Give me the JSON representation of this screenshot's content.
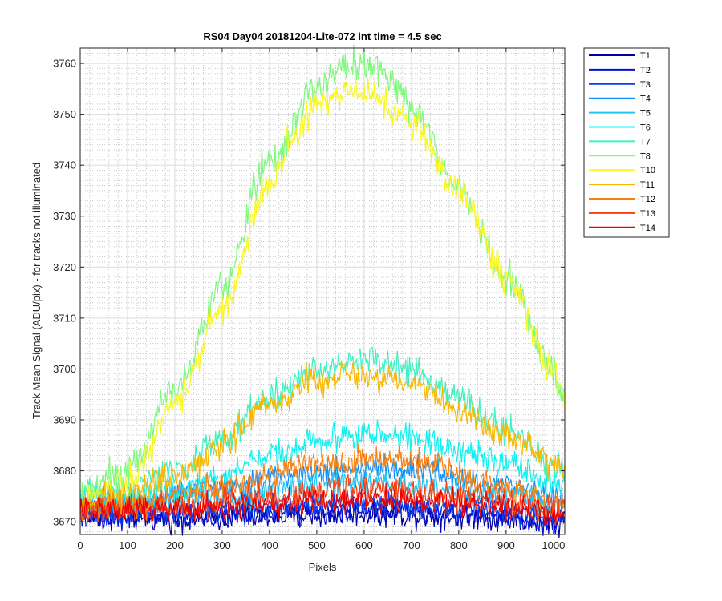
{
  "chart_data": {
    "type": "line",
    "title": "RS04 Day04 20181204-Lite-072 int time = 4.5 sec",
    "xlabel": "Pixels",
    "ylabel": "Track Mean Signal (ADU/pix) - for tracks not illuminated",
    "xlim": [
      0,
      1024
    ],
    "ylim": [
      3667.5,
      3763
    ],
    "xticks": [
      0,
      100,
      200,
      300,
      400,
      500,
      600,
      700,
      800,
      900,
      1000
    ],
    "yticks": [
      3670,
      3680,
      3690,
      3700,
      3710,
      3720,
      3730,
      3740,
      3750,
      3760
    ],
    "grid": "on",
    "minor_grid": "on",
    "legend_position": "outside-top-right",
    "series": [
      {
        "name": "T1",
        "color": "#0000a8",
        "points": [
          [
            0,
            3671
          ],
          [
            200,
            3670.5
          ],
          [
            400,
            3671
          ],
          [
            600,
            3671.5
          ],
          [
            800,
            3671
          ],
          [
            1024,
            3670
          ]
        ],
        "noise": 1.2
      },
      {
        "name": "T2",
        "color": "#0010d8",
        "points": [
          [
            0,
            3671
          ],
          [
            200,
            3671
          ],
          [
            400,
            3671.5
          ],
          [
            600,
            3672.5
          ],
          [
            800,
            3671.5
          ],
          [
            1024,
            3670
          ]
        ],
        "noise": 1.2
      },
      {
        "name": "T3",
        "color": "#0040f0",
        "points": [
          [
            0,
            3672
          ],
          [
            200,
            3672
          ],
          [
            400,
            3673
          ],
          [
            600,
            3674
          ],
          [
            800,
            3673
          ],
          [
            1024,
            3671
          ]
        ],
        "noise": 1.2
      },
      {
        "name": "T4",
        "color": "#1090f8",
        "points": [
          [
            0,
            3674
          ],
          [
            100,
            3674
          ],
          [
            300,
            3677
          ],
          [
            500,
            3680
          ],
          [
            600,
            3680.5
          ],
          [
            700,
            3680
          ],
          [
            900,
            3677
          ],
          [
            1024,
            3675
          ]
        ],
        "noise": 1.3
      },
      {
        "name": "T5",
        "color": "#20c8f8",
        "points": [
          [
            0,
            3673
          ],
          [
            100,
            3673.5
          ],
          [
            300,
            3675
          ],
          [
            500,
            3677
          ],
          [
            600,
            3677.5
          ],
          [
            700,
            3677
          ],
          [
            900,
            3675
          ],
          [
            1024,
            3673
          ]
        ],
        "noise": 1.3
      },
      {
        "name": "T6",
        "color": "#10f0f0",
        "points": [
          [
            0,
            3674
          ],
          [
            100,
            3674.5
          ],
          [
            200,
            3676
          ],
          [
            300,
            3679
          ],
          [
            400,
            3683
          ],
          [
            500,
            3686
          ],
          [
            600,
            3687
          ],
          [
            700,
            3686.5
          ],
          [
            800,
            3684
          ],
          [
            900,
            3681
          ],
          [
            1024,
            3677
          ]
        ],
        "noise": 1.4
      },
      {
        "name": "T7",
        "color": "#40f0c0",
        "points": [
          [
            0,
            3675
          ],
          [
            100,
            3676
          ],
          [
            200,
            3680
          ],
          [
            300,
            3686
          ],
          [
            400,
            3694
          ],
          [
            500,
            3700
          ],
          [
            600,
            3702
          ],
          [
            700,
            3700
          ],
          [
            800,
            3694
          ],
          [
            900,
            3688
          ],
          [
            1024,
            3680
          ]
        ],
        "noise": 1.5
      },
      {
        "name": "T8",
        "color": "#80f880",
        "points": [
          [
            0,
            3676
          ],
          [
            100,
            3680
          ],
          [
            200,
            3696
          ],
          [
            300,
            3716
          ],
          [
            400,
            3741
          ],
          [
            500,
            3755
          ],
          [
            550,
            3759
          ],
          [
            600,
            3760
          ],
          [
            650,
            3758
          ],
          [
            700,
            3751
          ],
          [
            800,
            3736
          ],
          [
            900,
            3718
          ],
          [
            1000,
            3700
          ],
          [
            1024,
            3695
          ]
        ],
        "noise": 1.6
      },
      {
        "name": "T10",
        "color": "#f8f820",
        "points": [
          [
            0,
            3674
          ],
          [
            100,
            3678
          ],
          [
            200,
            3693
          ],
          [
            300,
            3712
          ],
          [
            400,
            3736
          ],
          [
            450,
            3745
          ],
          [
            500,
            3752
          ],
          [
            600,
            3755
          ],
          [
            700,
            3748
          ],
          [
            800,
            3735
          ],
          [
            900,
            3718
          ],
          [
            1000,
            3700
          ],
          [
            1024,
            3695
          ]
        ],
        "noise": 1.6
      },
      {
        "name": "T11",
        "color": "#f8b800",
        "points": [
          [
            0,
            3673
          ],
          [
            100,
            3675
          ],
          [
            200,
            3679
          ],
          [
            300,
            3685
          ],
          [
            400,
            3693
          ],
          [
            500,
            3698
          ],
          [
            600,
            3699
          ],
          [
            700,
            3697
          ],
          [
            800,
            3692
          ],
          [
            900,
            3687
          ],
          [
            1024,
            3680
          ]
        ],
        "noise": 1.5
      },
      {
        "name": "T12",
        "color": "#f88010",
        "points": [
          [
            0,
            3672
          ],
          [
            100,
            3673
          ],
          [
            300,
            3677
          ],
          [
            500,
            3681.5
          ],
          [
            600,
            3682.5
          ],
          [
            700,
            3682
          ],
          [
            900,
            3677
          ],
          [
            1024,
            3673
          ]
        ],
        "noise": 1.3
      },
      {
        "name": "T13",
        "color": "#f84010",
        "points": [
          [
            0,
            3672
          ],
          [
            200,
            3673
          ],
          [
            400,
            3675
          ],
          [
            600,
            3676.5
          ],
          [
            800,
            3675
          ],
          [
            1024,
            3672
          ]
        ],
        "noise": 1.3
      },
      {
        "name": "T14",
        "color": "#f00000",
        "points": [
          [
            0,
            3672
          ],
          [
            200,
            3672.5
          ],
          [
            400,
            3673.5
          ],
          [
            600,
            3674.5
          ],
          [
            800,
            3673.5
          ],
          [
            1024,
            3671.5
          ]
        ],
        "noise": 1.3
      }
    ]
  }
}
